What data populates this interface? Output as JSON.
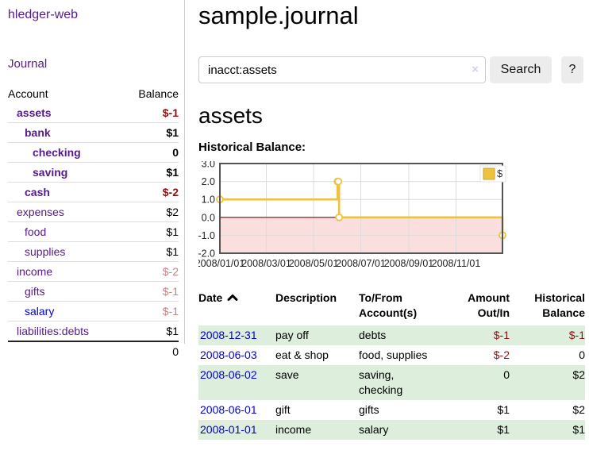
{
  "app": {
    "brand": "hledger-web"
  },
  "colors": {
    "link_purple": "#551A8B",
    "link_blue": "#0000CC",
    "negative_strong": "#8B1212",
    "negative_soft": "#C38484",
    "row_stripe_green": "#DDEEDD",
    "chart_line_gold": "#EDC240",
    "chart_negative_fill": "#FBDEDE",
    "chart_zero_line": "#8B0000",
    "chart_border": "#545454",
    "button_bg": "#ECECEC",
    "divider": "#CCCCCC"
  },
  "sidebar": {
    "nav": {
      "journal": "Journal"
    },
    "table_headers": {
      "account": "Account",
      "balance": "Balance"
    },
    "accounts": [
      {
        "label": "assets",
        "level": 1,
        "bold": true,
        "link": "purple",
        "balance": "$-1",
        "tone": "neg"
      },
      {
        "label": "bank",
        "level": 2,
        "bold": true,
        "link": "purple",
        "balance": "$1",
        "tone": "pos"
      },
      {
        "label": "checking",
        "level": 3,
        "bold": true,
        "link": "purple",
        "balance": "0",
        "tone": "pos"
      },
      {
        "label": "saving",
        "level": 3,
        "bold": true,
        "link": "purple",
        "balance": "$1",
        "tone": "pos"
      },
      {
        "label": "cash",
        "level": 2,
        "bold": true,
        "link": "purple",
        "balance": "$-2",
        "tone": "neg"
      },
      {
        "label": "expenses",
        "level": 1,
        "bold": false,
        "link": "purple",
        "balance": "$2",
        "tone": "pos"
      },
      {
        "label": "food",
        "level": 2,
        "bold": false,
        "link": "purple",
        "balance": "$1",
        "tone": "pos"
      },
      {
        "label": "supplies",
        "level": 2,
        "bold": false,
        "link": "purple",
        "balance": "$1",
        "tone": "pos"
      },
      {
        "label": "income",
        "level": 1,
        "bold": false,
        "link": "purple",
        "balance": "$-2",
        "tone": "soft"
      },
      {
        "label": "gifts",
        "level": 2,
        "bold": false,
        "link": "purple",
        "balance": "$-1",
        "tone": "soft"
      },
      {
        "label": "salary",
        "level": 2,
        "bold": false,
        "link": "blue",
        "balance": "$-1",
        "tone": "soft"
      },
      {
        "label": "liabilities:debts",
        "level": 1,
        "bold": false,
        "link": "purple",
        "balance": "$1",
        "tone": "pos"
      }
    ],
    "total": "0"
  },
  "main": {
    "title": "sample.journal",
    "search": {
      "value": "inacct:assets",
      "clear_icon": "×",
      "button": "Search",
      "help_button": "?"
    },
    "account_heading": "assets",
    "chart_label": "Historical Balance:"
  },
  "chart_data": {
    "type": "line",
    "step": true,
    "title": "Historical Balance:",
    "series": [
      {
        "name": "$",
        "color": "#EDC240",
        "points": [
          [
            "2008-01-01",
            1
          ],
          [
            "2008-06-01",
            2
          ],
          [
            "2008-06-02",
            2
          ],
          [
            "2008-06-03",
            0
          ],
          [
            "2008-12-31",
            -1
          ]
        ]
      }
    ],
    "ylim": [
      -2,
      3
    ],
    "yticks": [
      "3.0",
      "2.0",
      "1.0",
      "0.0",
      "-1.0",
      "-2.0"
    ],
    "xticks": [
      "2008/01/01",
      "2008/03/01",
      "2008/05/01",
      "2008/07/01",
      "2008/09/01",
      "2008/11/01"
    ],
    "x_range": [
      "2008-01-01",
      "2008-12-31"
    ],
    "legend_position": "top-right",
    "grid": true,
    "negative_region_fill": "#FBDEDE",
    "zero_line_color": "#8B0000"
  },
  "transactions": {
    "headers": {
      "date": "Date",
      "sort": "asc",
      "description": "Description",
      "accounts": "To/From Account(s)",
      "amount": "Amount Out/In",
      "balance": "Historical Balance"
    },
    "rows": [
      {
        "date": "2008-12-31",
        "description": "pay off",
        "accounts": "debts",
        "amount": "$-1",
        "amount_neg": true,
        "balance": "$-1",
        "balance_neg": true
      },
      {
        "date": "2008-06-03",
        "description": "eat & shop",
        "accounts": "food, supplies",
        "amount": "$-2",
        "amount_neg": true,
        "balance": "0",
        "balance_neg": false
      },
      {
        "date": "2008-06-02",
        "description": "save",
        "accounts": "saving, checking",
        "amount": "0",
        "amount_neg": false,
        "balance": "$2",
        "balance_neg": false
      },
      {
        "date": "2008-06-01",
        "description": "gift",
        "accounts": "gifts",
        "amount": "$1",
        "amount_neg": false,
        "balance": "$2",
        "balance_neg": false
      },
      {
        "date": "2008-01-01",
        "description": "income",
        "accounts": "salary",
        "amount": "$1",
        "amount_neg": false,
        "balance": "$1",
        "balance_neg": false
      }
    ]
  }
}
